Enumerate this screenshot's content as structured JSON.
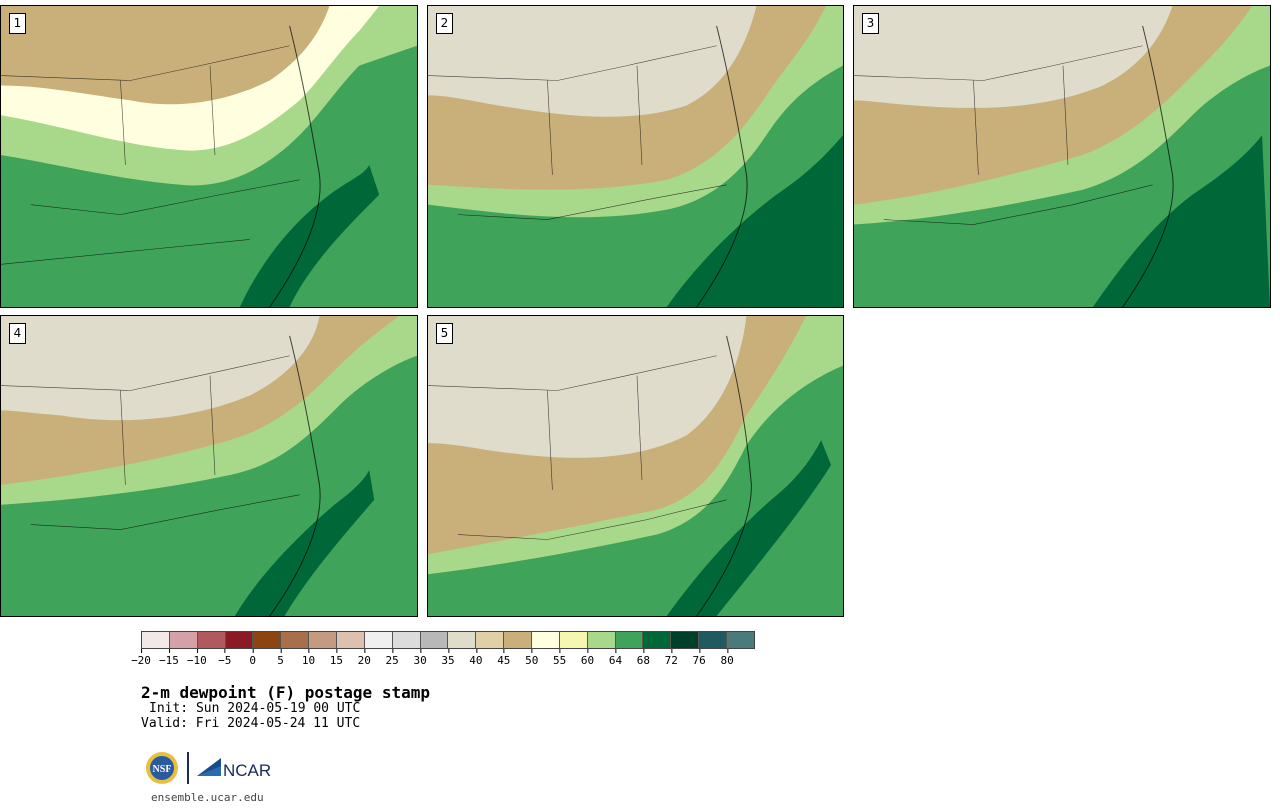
{
  "panels": [
    {
      "label": "1",
      "colors": {
        "north": "#c9b07a",
        "mid": "#ffffe0",
        "south": "#a8d88a",
        "ocean": "#3fa35a",
        "deep": "#006838"
      }
    },
    {
      "label": "2",
      "colors": {
        "north": "#e0dccc",
        "mid": "#c9b07a",
        "south": "#a8d88a",
        "ocean": "#3fa35a",
        "deep": "#006838"
      }
    },
    {
      "label": "3",
      "colors": {
        "north": "#e0dccc",
        "mid": "#c9b07a",
        "south": "#a8d88a",
        "ocean": "#3fa35a",
        "deep": "#006838"
      }
    },
    {
      "label": "4",
      "colors": {
        "north": "#e0dccc",
        "mid": "#c9b07a",
        "south": "#a8d88a",
        "ocean": "#3fa35a",
        "deep": "#006838"
      }
    },
    {
      "label": "5",
      "colors": {
        "north": "#e0dccc",
        "mid": "#c9b07a",
        "south": "#a8d88a",
        "ocean": "#3fa35a",
        "deep": "#006838"
      }
    }
  ],
  "colorbar": {
    "colors": [
      "#f2e8e8",
      "#d5a0a8",
      "#b05a60",
      "#8b1a22",
      "#8b4513",
      "#a8704a",
      "#c49a80",
      "#dcc0b0",
      "#f0f0f0",
      "#dcdcdc",
      "#b8b8b8",
      "#e0dccc",
      "#e0d0a8",
      "#c9b07a",
      "#ffffe0",
      "#f5f7b0",
      "#a8d88a",
      "#3fa35a",
      "#006838",
      "#00402a",
      "#1f5a60",
      "#4a7a7a"
    ],
    "ticks": [
      "−20",
      "−15",
      "−10",
      "−5",
      "0",
      "5",
      "10",
      "15",
      "20",
      "25",
      "30",
      "35",
      "40",
      "45",
      "50",
      "55",
      "60",
      "64",
      "68",
      "72",
      "76",
      "80"
    ]
  },
  "title": "2-m dewpoint (F) postage stamp",
  "init": "Init: Sun 2024-05-19 00 UTC",
  "valid": "Valid: Fri 2024-05-24 11 UTC",
  "logo": {
    "nsf_text": "NSF",
    "ncar_text": "NCAR"
  },
  "site": "ensemble.ucar.edu"
}
